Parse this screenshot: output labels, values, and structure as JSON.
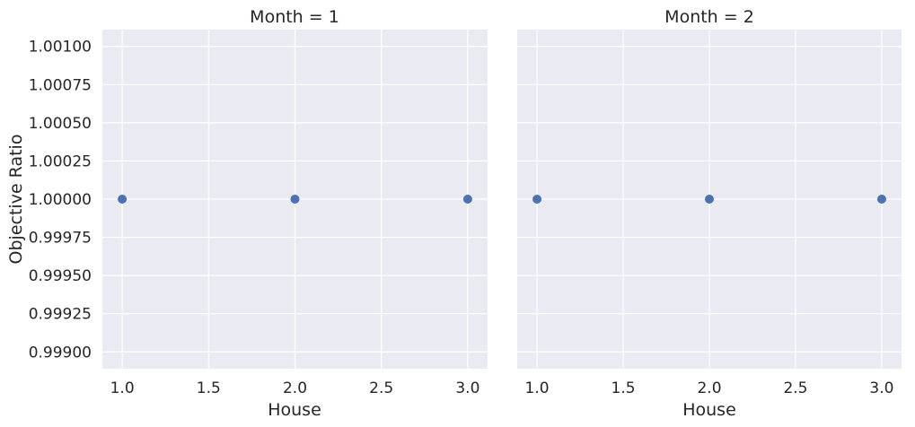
{
  "chart_data": [
    {
      "type": "scatter",
      "title": "Month = 1",
      "xlabel": "House",
      "ylabel": "Objective Ratio",
      "x": [
        1.0,
        2.0,
        3.0
      ],
      "y": [
        1.0,
        1.0,
        1.0
      ],
      "xlim": [
        0.885,
        3.115
      ],
      "ylim": [
        0.99889,
        1.00111
      ],
      "xticks": [
        "1.0",
        "1.5",
        "2.0",
        "2.5",
        "3.0"
      ],
      "yticks": [
        "0.99900",
        "0.99925",
        "0.99950",
        "0.99975",
        "1.00000",
        "1.00025",
        "1.00050",
        "1.00075",
        "1.00100"
      ],
      "grid": true,
      "color": "#4c72b0"
    },
    {
      "type": "scatter",
      "title": "Month = 2",
      "xlabel": "House",
      "ylabel": "",
      "x": [
        1.0,
        2.0,
        3.0
      ],
      "y": [
        1.0,
        1.0,
        1.0
      ],
      "xlim": [
        0.885,
        3.115
      ],
      "ylim": [
        0.99889,
        1.00111
      ],
      "xticks": [
        "1.0",
        "1.5",
        "2.0",
        "2.5",
        "3.0"
      ],
      "yticks": [],
      "grid": true,
      "color": "#4c72b0"
    }
  ]
}
